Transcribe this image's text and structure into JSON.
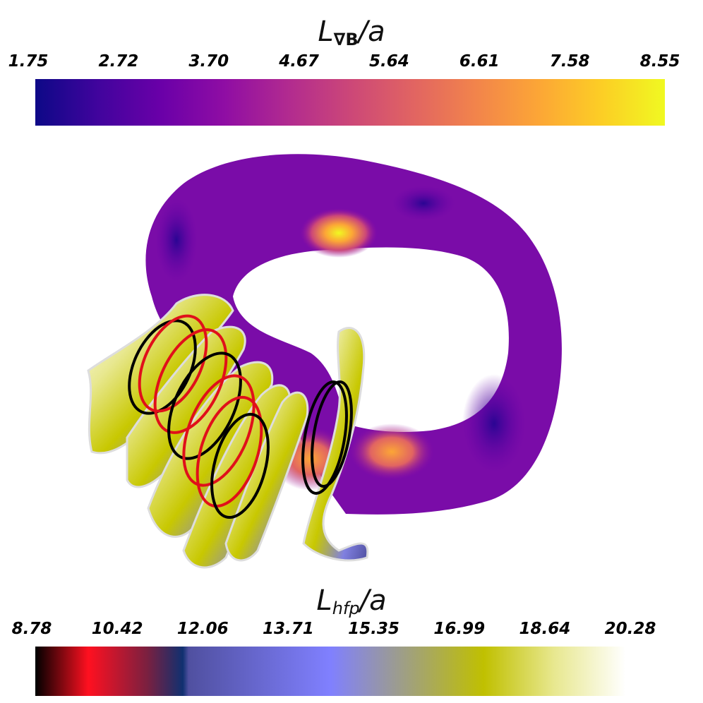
{
  "top_colorbar": {
    "title_main": "L",
    "title_sub": "∇B",
    "title_tail": "/a",
    "ticks": [
      "1.75",
      "2.72",
      "3.70",
      "4.67",
      "5.64",
      "6.61",
      "7.58",
      "8.55"
    ],
    "colors": [
      "#0d0887",
      "#41049d",
      "#6a00a8",
      "#8f0da4",
      "#b12a90",
      "#cc4778",
      "#e16462",
      "#f2844b",
      "#fca636",
      "#fcce25",
      "#f0f921"
    ]
  },
  "bottom_colorbar": {
    "title_main": "L",
    "title_sub": "hfp",
    "title_tail": "/a",
    "ticks": [
      "8.78",
      "10.42",
      "12.06",
      "13.71",
      "15.35",
      "16.99",
      "18.64",
      "20.28"
    ],
    "colors": [
      "#000000",
      "#ff1020",
      "#7a2040",
      "#103070",
      "#5050a0",
      "#8080ff",
      "#c0c000",
      "#e8e890",
      "#ffffff"
    ]
  },
  "scene": {
    "surface_colormap": "plasma",
    "coil_colors": {
      "red": "#e0101a",
      "black": "#000000"
    },
    "fin_colors": {
      "white": "#f4f4f4",
      "yellow": "#d8d800",
      "blue": "#8080e0"
    }
  }
}
